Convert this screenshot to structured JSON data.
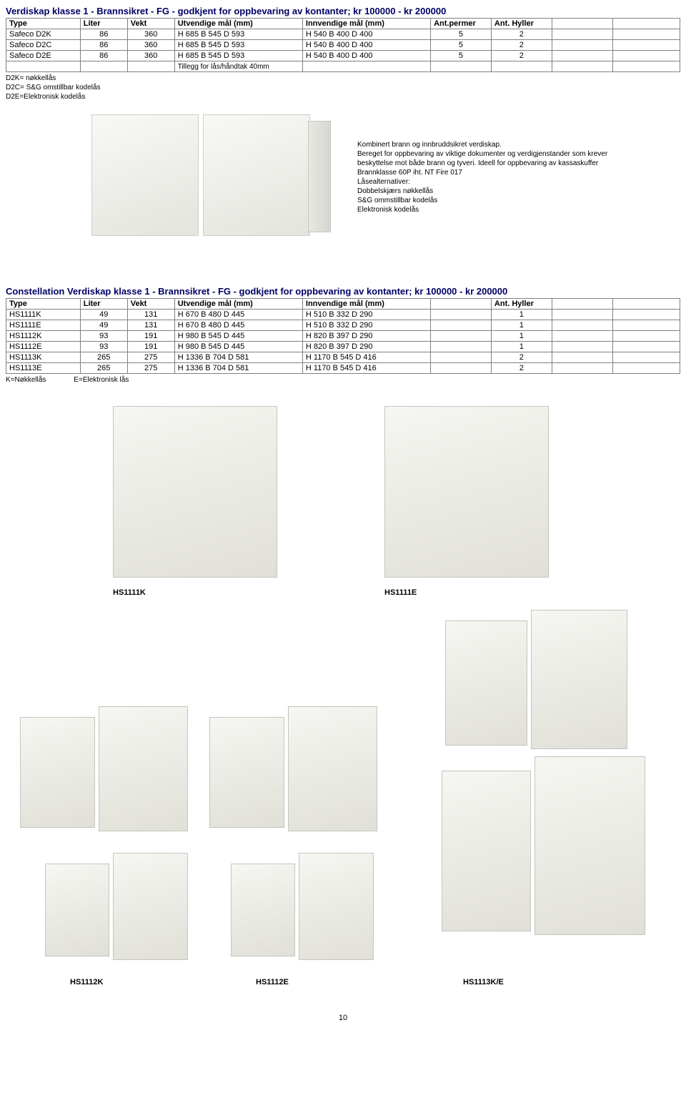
{
  "section1": {
    "title": "Verdiskap klasse 1 - Brannsikret - FG - godkjent for oppbevaring av kontanter; kr 100000 - kr 200000",
    "columns": [
      "Type",
      "Liter",
      "Vekt",
      "Utvendige mål (mm)",
      "Innvendige mål (mm)",
      "Ant.permer",
      "Ant. Hyller",
      "",
      ""
    ],
    "rows": [
      [
        "Safeco D2K",
        "86",
        "360",
        "H  685 B 545 D 593",
        "H  540 B 400 D 400",
        "5",
        "2",
        "",
        ""
      ],
      [
        "Safeco D2C",
        "86",
        "360",
        "H  685 B 545 D 593",
        "H  540 B 400 D 400",
        "5",
        "2",
        "",
        ""
      ],
      [
        "Safeco D2E",
        "86",
        "360",
        "H  685 B 545 D 593",
        "H  540 B 400 D 400",
        "5",
        "2",
        "",
        ""
      ]
    ],
    "tillegg": "Tillegg for lås/håndtak 40mm",
    "legend": [
      "D2K= nøkkellås",
      "D2C= S&G omstillbar kodelås",
      "D2E=Elektronisk kodelås"
    ],
    "desc": [
      "Kombinert brann og innbruddsikret verdiskap.",
      "Bereget for oppbevaring av viktige dokumenter og verdigjenstander som krever",
      "beskyttelse mot både brann og tyveri. Ideell for oppbevaring av kassaskuffer",
      "Brannklasse 60P iht. NT Fire 017",
      "Låsealternativer:",
      "Dobbelskjærs nøkkellås",
      "S&G ommstillbar kodelås",
      "Elektronisk kodelås"
    ]
  },
  "section2": {
    "title": "Constellation Verdiskap klasse 1 - Brannsikret - FG - godkjent for oppbevaring av kontanter; kr 100000 - kr 200000",
    "columns": [
      "Type",
      "Liter",
      "Vekt",
      "Utvendige mål (mm)",
      "Innvendige mål (mm)",
      "",
      "Ant. Hyller",
      "",
      ""
    ],
    "rows": [
      [
        "HS1111K",
        "49",
        "131",
        "H  670 B 480 D 445",
        "H  510 B 332 D 290",
        "",
        "1",
        "",
        ""
      ],
      [
        "HS1111E",
        "49",
        "131",
        "H  670 B 480 D 445",
        "H  510 B 332 D 290",
        "",
        "1",
        "",
        ""
      ],
      [
        "HS1112K",
        "93",
        "191",
        "H  980 B 545 D 445",
        "H  820 B 397 D 290",
        "",
        "1",
        "",
        ""
      ],
      [
        "HS1112E",
        "93",
        "191",
        "H  980 B 545 D 445",
        "H  820 B 397 D 290",
        "",
        "1",
        "",
        ""
      ],
      [
        "HS1113K",
        "265",
        "275",
        "H  1336 B 704 D 581",
        "H  1170 B 545 D 416",
        "",
        "2",
        "",
        ""
      ],
      [
        "HS1113E",
        "265",
        "275",
        "H  1336 B 704 D 581",
        "H  1170 B 545 D 416",
        "",
        "2",
        "",
        ""
      ]
    ],
    "legend": "K=Nøkkellås              E=Elektronisk lås",
    "labels": {
      "hs1111k": "HS1111K",
      "hs1111e": "HS1111E",
      "hs1112k": "HS1112K",
      "hs1112e": "HS1112E",
      "hs1113ke": "HS1113K/E"
    }
  },
  "page": "10",
  "colWidths": [
    "11%",
    "7%",
    "7%",
    "19%",
    "19%",
    "9%",
    "9%",
    "9%",
    "10%"
  ],
  "colors": {
    "title": "#000066",
    "border": "#808080"
  }
}
